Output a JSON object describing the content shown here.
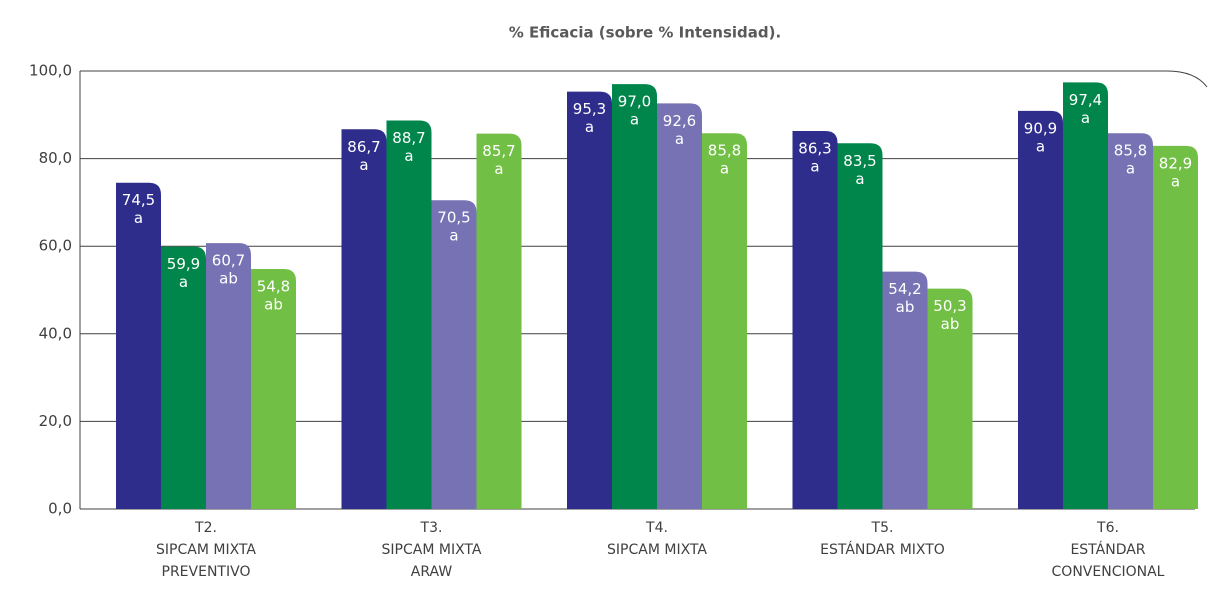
{
  "chart_data": {
    "type": "bar",
    "title": "% Eficacia (sobre % Intensidad).",
    "categories": [
      [
        "T2.",
        "SIPCAM MIXTA",
        "PREVENTIVO"
      ],
      [
        "T3.",
        "SIPCAM MIXTA",
        "ARAW"
      ],
      [
        "T4.",
        "SIPCAM MIXTA"
      ],
      [
        "T5.",
        "ESTÁNDAR MIXTO"
      ],
      [
        "T6.",
        "ESTÁNDAR",
        "CONVENCIONAL"
      ]
    ],
    "series": [
      {
        "color": "#2e2d8c",
        "values": [
          74.5,
          86.7,
          95.3,
          86.3,
          90.9
        ],
        "value_labels": [
          "74,5",
          "86,7",
          "95,3",
          "86,3",
          "90,9"
        ],
        "letters": [
          "a",
          "a",
          "a",
          "a",
          "a"
        ]
      },
      {
        "color": "#00864b",
        "values": [
          59.9,
          88.7,
          97.0,
          83.5,
          97.4
        ],
        "value_labels": [
          "59,9",
          "88,7",
          "97,0",
          "83,5",
          "97,4"
        ],
        "letters": [
          "a",
          "a",
          "a",
          "a",
          "a"
        ]
      },
      {
        "color": "#7672b4",
        "values": [
          60.7,
          70.5,
          92.6,
          54.2,
          85.8
        ],
        "value_labels": [
          "60,7",
          "70,5",
          "92,6",
          "54,2",
          "85,8"
        ],
        "letters": [
          "ab",
          "a",
          "a",
          "ab",
          "a"
        ]
      },
      {
        "color": "#72bf45",
        "values": [
          54.8,
          85.7,
          85.8,
          50.3,
          82.9
        ],
        "value_labels": [
          "54,8",
          "85,7",
          "85,8",
          "50,3",
          "82,9"
        ],
        "letters": [
          "ab",
          "a",
          "a",
          "ab",
          "a"
        ]
      }
    ],
    "ylim": [
      0,
      100
    ],
    "yticks": [
      {
        "value": 0,
        "label": "0,0"
      },
      {
        "value": 20,
        "label": "20,0"
      },
      {
        "value": 40,
        "label": "40,0"
      },
      {
        "value": 60,
        "label": "60,0"
      },
      {
        "value": 80,
        "label": "80,0"
      },
      {
        "value": 100,
        "label": "100,0"
      }
    ],
    "grid": true
  }
}
